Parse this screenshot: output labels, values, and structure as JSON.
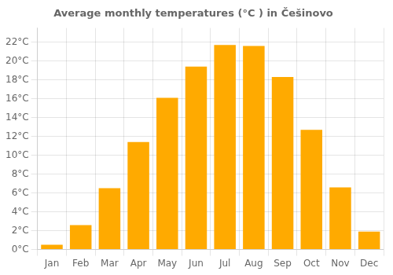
{
  "chart_data": {
    "type": "bar",
    "title": "Average monthly temperatures (°C ) in Češinovo",
    "categories": [
      "Jan",
      "Feb",
      "Mar",
      "Apr",
      "May",
      "Jun",
      "Jul",
      "Aug",
      "Sep",
      "Oct",
      "Nov",
      "Dec"
    ],
    "values": [
      0.5,
      2.6,
      6.5,
      11.4,
      16.1,
      19.4,
      21.7,
      21.6,
      18.3,
      12.7,
      6.6,
      1.9
    ],
    "color": "#FFAA00",
    "ylim": [
      0,
      23.5
    ],
    "yticks": [
      {
        "value": 0,
        "label": "0°C"
      },
      {
        "value": 2,
        "label": "2°C"
      },
      {
        "value": 4,
        "label": "4°C"
      },
      {
        "value": 6,
        "label": "6°C"
      },
      {
        "value": 8,
        "label": "8°C"
      },
      {
        "value": 10,
        "label": "10°C"
      },
      {
        "value": 12,
        "label": "12°C"
      },
      {
        "value": 14,
        "label": "14°C"
      },
      {
        "value": 16,
        "label": "16°C"
      },
      {
        "value": 18,
        "label": "18°C"
      },
      {
        "value": 20,
        "label": "20°C"
      },
      {
        "value": 22,
        "label": "22°C"
      }
    ],
    "grid": true
  }
}
